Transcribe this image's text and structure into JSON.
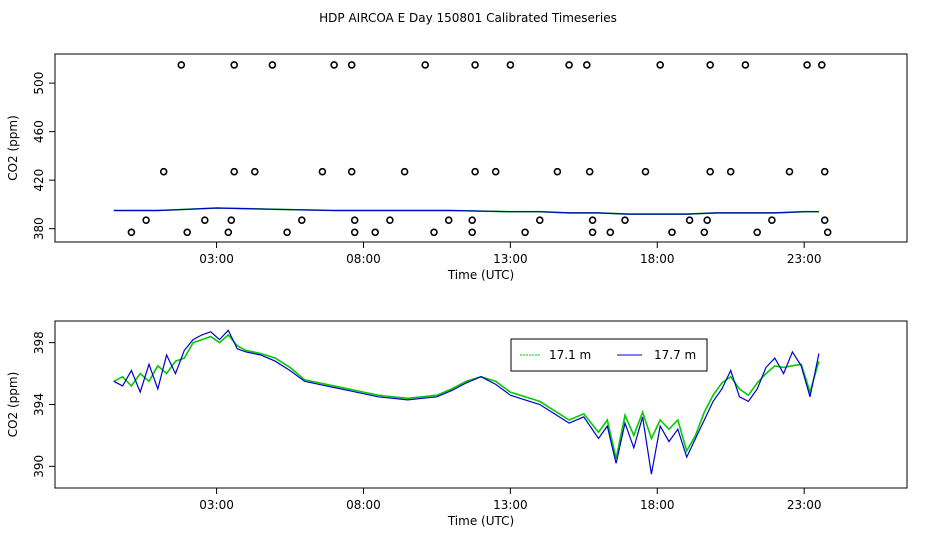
{
  "title": "HDP AIRCOA E  Day 150801  Calibrated Timeseries",
  "chart_data": [
    {
      "type": "scatter+line",
      "xlabel": "Time (UTC)",
      "ylabel": "CO2 (ppm)",
      "xlim": [
        -2.5,
        26.5
      ],
      "ylim": [
        369,
        524
      ],
      "x_ticks": [
        3,
        8,
        13,
        18,
        23
      ],
      "x_tick_labels": [
        "03:00",
        "08:00",
        "13:00",
        "18:00",
        "23:00"
      ],
      "y_ticks": [
        380,
        420,
        460,
        500
      ],
      "y_tick_labels": [
        "380",
        "420",
        "460",
        "500"
      ],
      "points": {
        "marker": "open-circle",
        "color": "#000000",
        "data": [
          [
            1.8,
            515
          ],
          [
            3.6,
            515
          ],
          [
            4.9,
            515
          ],
          [
            7.0,
            515
          ],
          [
            7.6,
            515
          ],
          [
            10.1,
            515
          ],
          [
            11.8,
            515
          ],
          [
            13.0,
            515
          ],
          [
            15.0,
            515
          ],
          [
            15.6,
            515
          ],
          [
            18.1,
            515
          ],
          [
            19.8,
            515
          ],
          [
            21.0,
            515
          ],
          [
            23.1,
            515
          ],
          [
            23.6,
            515
          ],
          [
            1.2,
            427
          ],
          [
            3.6,
            427
          ],
          [
            4.3,
            427
          ],
          [
            6.6,
            427
          ],
          [
            7.6,
            427
          ],
          [
            9.4,
            427
          ],
          [
            11.8,
            427
          ],
          [
            12.5,
            427
          ],
          [
            14.6,
            427
          ],
          [
            15.7,
            427
          ],
          [
            17.6,
            427
          ],
          [
            19.8,
            427
          ],
          [
            20.5,
            427
          ],
          [
            22.5,
            427
          ],
          [
            23.7,
            427
          ],
          [
            0.6,
            387
          ],
          [
            2.6,
            387
          ],
          [
            3.5,
            387
          ],
          [
            5.9,
            387
          ],
          [
            7.7,
            387
          ],
          [
            8.9,
            387
          ],
          [
            10.9,
            387
          ],
          [
            11.7,
            387
          ],
          [
            14.0,
            387
          ],
          [
            15.8,
            387
          ],
          [
            16.9,
            387
          ],
          [
            19.1,
            387
          ],
          [
            19.7,
            387
          ],
          [
            21.9,
            387
          ],
          [
            23.7,
            387
          ],
          [
            0.1,
            377
          ],
          [
            2.0,
            377
          ],
          [
            3.4,
            377
          ],
          [
            5.4,
            377
          ],
          [
            7.7,
            377
          ],
          [
            8.4,
            377
          ],
          [
            10.4,
            377
          ],
          [
            11.7,
            377
          ],
          [
            13.5,
            377
          ],
          [
            15.8,
            377
          ],
          [
            16.4,
            377
          ],
          [
            18.5,
            377
          ],
          [
            19.6,
            377
          ],
          [
            21.4,
            377
          ],
          [
            23.8,
            377
          ]
        ]
      },
      "series": [
        {
          "color": "#00cc00",
          "x": [
            -0.5,
            1,
            2,
            3,
            5,
            7,
            9,
            11,
            13,
            14,
            15,
            16,
            17,
            18,
            19,
            20,
            21,
            22,
            23,
            23.5
          ],
          "values": [
            395,
            395,
            396,
            397,
            396,
            395,
            395,
            395,
            394,
            394,
            393,
            393,
            392,
            392,
            392,
            393,
            393,
            393,
            394,
            394
          ]
        },
        {
          "color": "#0000cc",
          "x": [
            -0.5,
            1,
            2,
            3,
            5,
            7,
            9,
            11,
            13,
            14,
            15,
            16,
            17,
            18,
            19,
            20,
            21,
            22,
            23,
            23.5
          ],
          "values": [
            395,
            395,
            396,
            397,
            396,
            395,
            395,
            395,
            394,
            394,
            393,
            393,
            392,
            392,
            392,
            393,
            393,
            393,
            394,
            394
          ]
        }
      ]
    },
    {
      "type": "line",
      "xlabel": "Time (UTC)",
      "ylabel": "CO2 (ppm)",
      "xlim": [
        -2.5,
        26.5
      ],
      "ylim": [
        388.6,
        399.4
      ],
      "x_ticks": [
        3,
        8,
        13,
        18,
        23
      ],
      "x_tick_labels": [
        "03:00",
        "08:00",
        "13:00",
        "18:00",
        "23:00"
      ],
      "y_ticks": [
        390,
        394,
        398
      ],
      "y_tick_labels": [
        "390",
        "394",
        "398"
      ],
      "legend": {
        "position": "top-right",
        "entries": [
          "17.1 m",
          "17.7 m"
        ]
      },
      "series": [
        {
          "name": "17.1 m",
          "color": "#00cc00",
          "x": [
            -0.5,
            -0.2,
            0.1,
            0.4,
            0.7,
            1.0,
            1.3,
            1.6,
            1.9,
            2.2,
            2.5,
            2.8,
            3.1,
            3.4,
            3.7,
            4.0,
            4.5,
            5.0,
            5.5,
            6.0,
            6.5,
            7.0,
            7.5,
            8.0,
            8.5,
            9.0,
            9.5,
            10.0,
            10.5,
            11.0,
            11.5,
            12.0,
            12.5,
            13.0,
            13.5,
            14.0,
            14.5,
            15.0,
            15.5,
            16.0,
            16.3,
            16.6,
            16.9,
            17.2,
            17.5,
            17.8,
            18.1,
            18.4,
            18.7,
            19.0,
            19.3,
            19.6,
            19.9,
            20.2,
            20.5,
            20.8,
            21.1,
            21.4,
            21.7,
            22.0,
            22.3,
            22.6,
            22.9,
            23.2,
            23.5
          ],
          "values": [
            395.5,
            395.8,
            395.2,
            396.0,
            395.5,
            396.5,
            396.0,
            396.8,
            397.0,
            398.0,
            398.2,
            398.4,
            398.0,
            398.5,
            397.8,
            397.5,
            397.3,
            397.0,
            396.4,
            395.6,
            395.4,
            395.2,
            395.0,
            394.8,
            394.6,
            394.5,
            394.4,
            394.5,
            394.6,
            395.0,
            395.5,
            395.8,
            395.5,
            394.8,
            394.5,
            394.2,
            393.6,
            393.0,
            393.4,
            392.2,
            393.0,
            390.5,
            393.3,
            392.0,
            393.5,
            391.8,
            393.0,
            392.4,
            393.0,
            391.0,
            392.0,
            393.5,
            394.6,
            395.4,
            395.8,
            395.0,
            394.6,
            395.4,
            396.0,
            396.5,
            396.4,
            396.5,
            396.6,
            394.8,
            396.8
          ]
        },
        {
          "name": "17.7 m",
          "color": "#0000cc",
          "x": [
            -0.5,
            -0.2,
            0.1,
            0.4,
            0.7,
            1.0,
            1.3,
            1.6,
            1.9,
            2.2,
            2.5,
            2.8,
            3.1,
            3.4,
            3.7,
            4.0,
            4.5,
            5.0,
            5.5,
            6.0,
            6.5,
            7.0,
            7.5,
            8.0,
            8.5,
            9.0,
            9.5,
            10.0,
            10.5,
            11.0,
            11.5,
            12.0,
            12.5,
            13.0,
            13.5,
            14.0,
            14.5,
            15.0,
            15.5,
            16.0,
            16.3,
            16.6,
            16.9,
            17.2,
            17.5,
            17.8,
            18.1,
            18.4,
            18.7,
            19.0,
            19.3,
            19.6,
            19.9,
            20.2,
            20.5,
            20.8,
            21.1,
            21.4,
            21.7,
            22.0,
            22.3,
            22.6,
            22.9,
            23.2,
            23.5
          ],
          "values": [
            395.5,
            395.2,
            396.2,
            394.8,
            396.6,
            395.0,
            397.2,
            396.0,
            397.5,
            398.2,
            398.5,
            398.7,
            398.2,
            398.8,
            397.6,
            397.4,
            397.2,
            396.8,
            396.2,
            395.5,
            395.3,
            395.1,
            394.9,
            394.7,
            394.5,
            394.4,
            394.3,
            394.4,
            394.5,
            394.9,
            395.4,
            395.8,
            395.3,
            394.6,
            394.3,
            394.0,
            393.4,
            392.8,
            393.2,
            391.8,
            392.6,
            390.2,
            392.8,
            391.2,
            393.2,
            389.5,
            392.6,
            391.6,
            392.4,
            390.6,
            391.8,
            393.0,
            394.2,
            395.0,
            396.2,
            394.5,
            394.2,
            395.0,
            396.4,
            397.0,
            396.0,
            397.4,
            396.5,
            394.5,
            397.3
          ]
        }
      ]
    }
  ]
}
